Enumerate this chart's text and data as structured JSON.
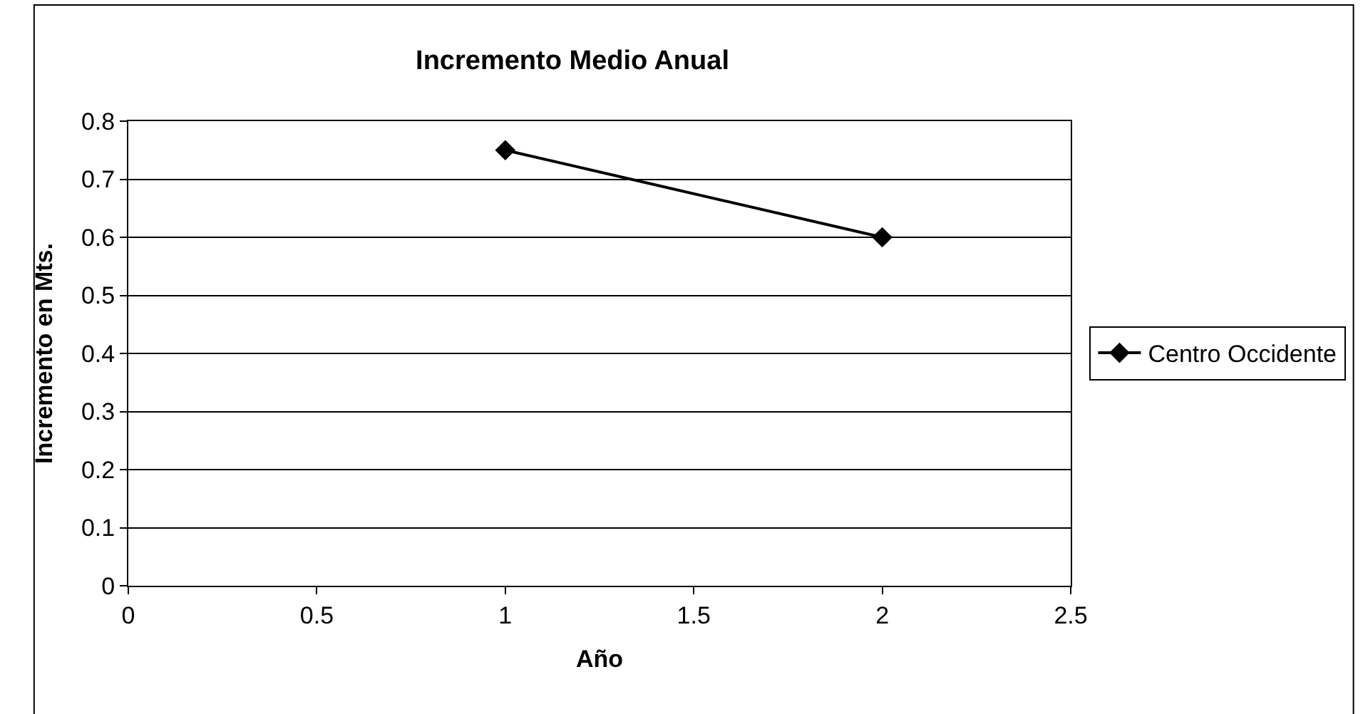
{
  "chart_data": {
    "type": "line",
    "title": "Incremento Medio Anual",
    "xlabel": "Año",
    "ylabel": "Incremento en Mts.",
    "x": [
      1,
      2
    ],
    "series": [
      {
        "name": "Centro Occidente",
        "color": "#000000",
        "values": [
          0.75,
          0.6
        ]
      }
    ],
    "xlim": [
      0,
      2.5
    ],
    "xticks": [
      0,
      0.5,
      1,
      1.5,
      2,
      2.5
    ],
    "ylim": [
      0,
      0.8
    ],
    "yticks": [
      0,
      0.1,
      0.2,
      0.3,
      0.4,
      0.5,
      0.6,
      0.7,
      0.8
    ],
    "grid": "y",
    "legend": "right",
    "marker": "diamond",
    "line_style": "solid"
  }
}
